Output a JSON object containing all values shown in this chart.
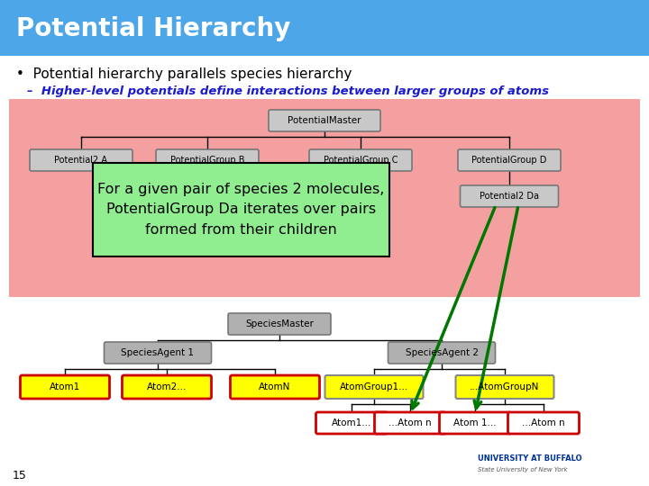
{
  "title": "Potential Hierarchy",
  "title_bg": "#4da6e8",
  "title_color": "white",
  "bullet1": "Potential hierarchy parallels species hierarchy",
  "bullet2_color": "#1a1acc",
  "bullet2": "Higher-level potentials define interactions between larger groups of atoms",
  "diagram_bg": "#f4a0a0",
  "slide_bg": "white",
  "footer_num": "15",
  "annotation_text": "For a given pair of species 2 molecules,\nPotentialGroup Da iterates over pairs\nformed from their children",
  "annotation_bg": "#90ee90",
  "annotation_border": "black",
  "node_labels": {
    "PotentialMaster": "PotentialMaster",
    "Potential2A": "Potential2 A",
    "PotentialGroupB": "PotentialGroup B",
    "PotentialGroupC": "PotentialGroup C",
    "PotentialGroupD": "PotentialGroup D",
    "Potential2Da": "Potential2 Da",
    "SpeciesMaster": "SpeciesMaster",
    "SpeciesAgent1": "SpeciesAgent 1",
    "SpeciesAgent2": "SpeciesAgent 2",
    "Atom1": "Atom1",
    "Atom2": "Atom2...",
    "AtomN": "AtomN",
    "AtomGroup1": "AtomGroup1...",
    "AtomGroupN": "...AtomGroupN",
    "Atom1a": "Atom1...",
    "AtomNa": "...Atom n",
    "Atom1b": "Atom 1...",
    "AtomNb": "...Atom n"
  }
}
